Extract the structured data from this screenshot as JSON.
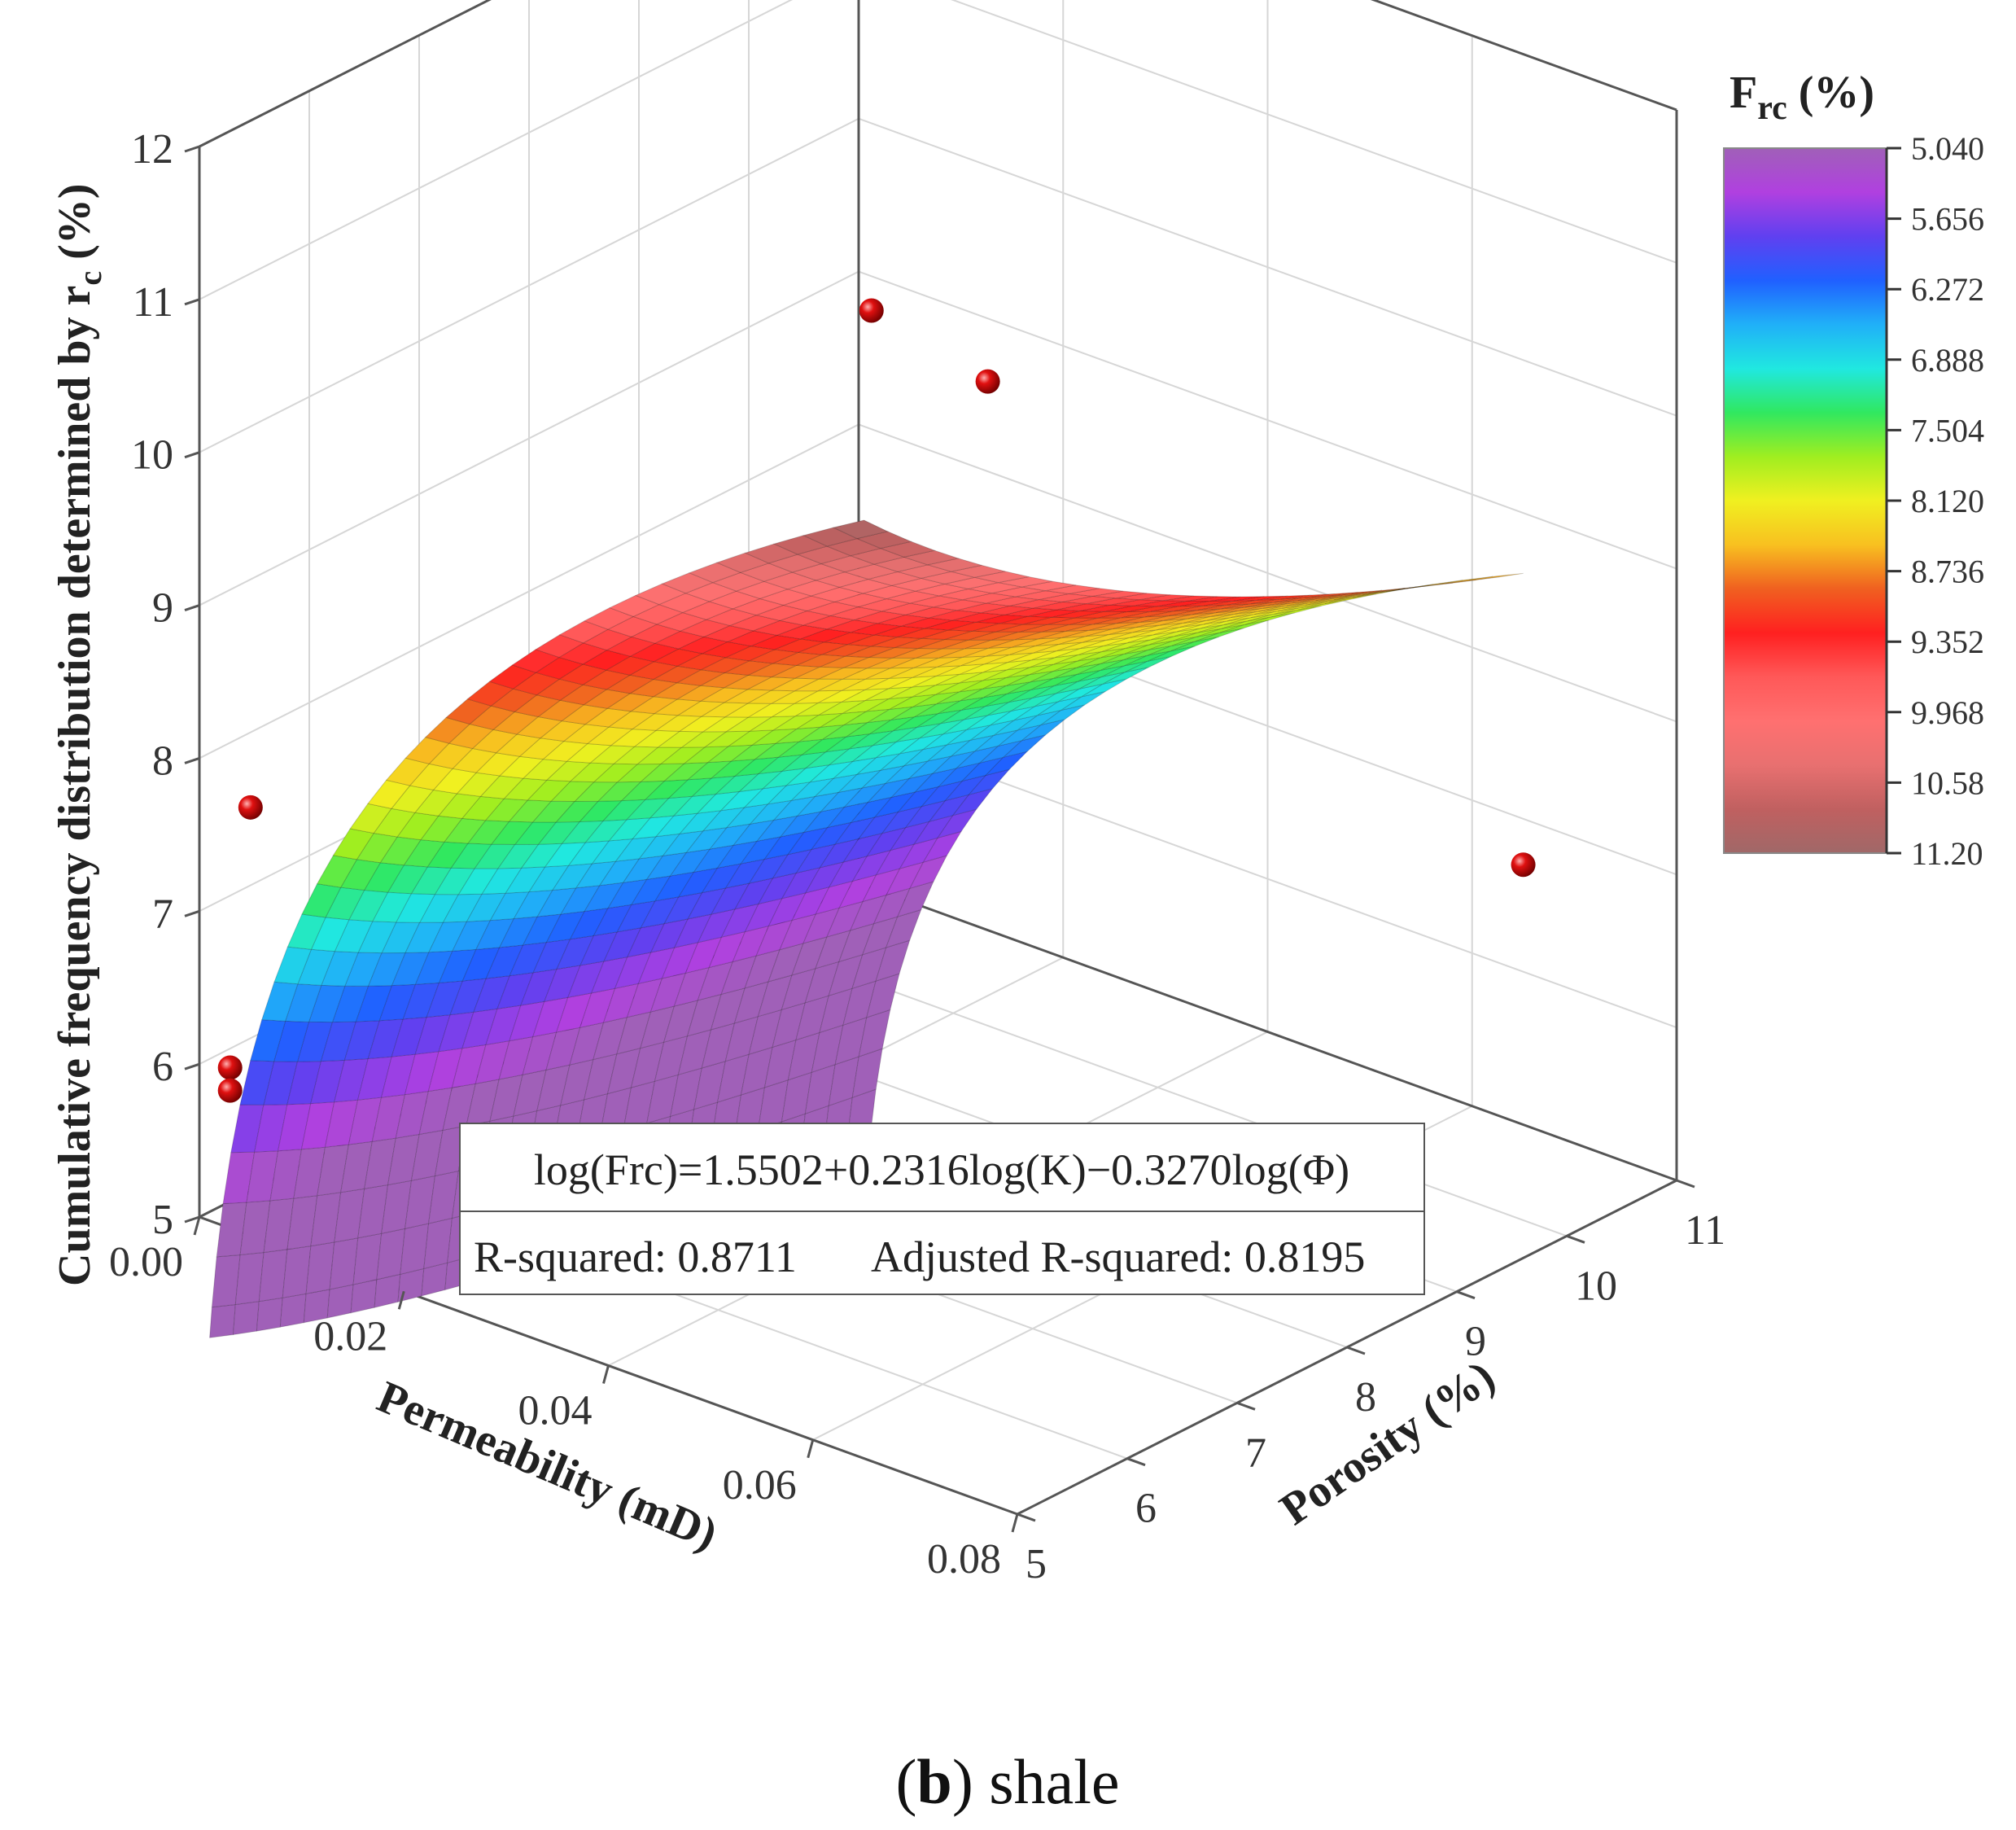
{
  "chart_data": {
    "type": "surface3d",
    "zlabel": "Cumulative frequency distribution determined by r",
    "zlabel_sub": "c",
    "zlabel_suffix": " (%)",
    "xlabel": "Permeability (mD)",
    "ylabel": "Porosity (%)",
    "x_ticks": [
      "0.00",
      "0.02",
      "0.04",
      "0.06",
      "0.08"
    ],
    "y_ticks": [
      "5",
      "6",
      "7",
      "8",
      "9",
      "10",
      "11"
    ],
    "z_ticks": [
      "5",
      "6",
      "7",
      "8",
      "9",
      "10",
      "11",
      "12"
    ],
    "xlim": [
      0,
      0.08
    ],
    "ylim": [
      5,
      11
    ],
    "zlim": [
      5,
      12
    ],
    "surface": {
      "equation": "log(Frc)=1.5502+0.2316log(K)−0.3270log(Φ)",
      "coefficients": {
        "intercept": 1.5502,
        "k_coef": 0.2316,
        "phi_coef": -0.327
      },
      "x_range": [
        0.001,
        0.065
      ],
      "y_range": [
        5,
        11
      ]
    },
    "stats": {
      "r_squared": "R-squared: 0.8711",
      "adj_r_squared": "Adjusted R-squared: 0.8195"
    },
    "colorbar": {
      "title": "F",
      "title_sub": "rc",
      "title_suffix": " (%)",
      "ticks": [
        "5.040",
        "5.656",
        "6.272",
        "6.888",
        "7.504",
        "8.120",
        "8.736",
        "9.352",
        "9.968",
        "10.58",
        "11.20"
      ],
      "colors": [
        "#a060b8",
        "#b040e0",
        "#6040f0",
        "#2060ff",
        "#20b0f8",
        "#20e8e0",
        "#30e860",
        "#a0ee20",
        "#f0f020",
        "#f8c020",
        "#f06020",
        "#ff2020",
        "#ff5858",
        "#ff7070",
        "#e87070",
        "#c06060",
        "#a06868"
      ]
    },
    "points": [
      {
        "x": 0.005,
        "y": 5.0,
        "z": 7.8
      },
      {
        "x": 0.012,
        "y": 10.0,
        "z": 9.4
      },
      {
        "x": 0.018,
        "y": 10.5,
        "z": 8.9
      },
      {
        "x": 0.065,
        "y": 11.0,
        "z": 6.7
      },
      {
        "x": 0.003,
        "y": 5.0,
        "z": 6.05
      },
      {
        "x": 0.003,
        "y": 5.0,
        "z": 5.9
      }
    ]
  },
  "caption": {
    "open": "(",
    "bold": "b",
    "rest": ") shale"
  }
}
